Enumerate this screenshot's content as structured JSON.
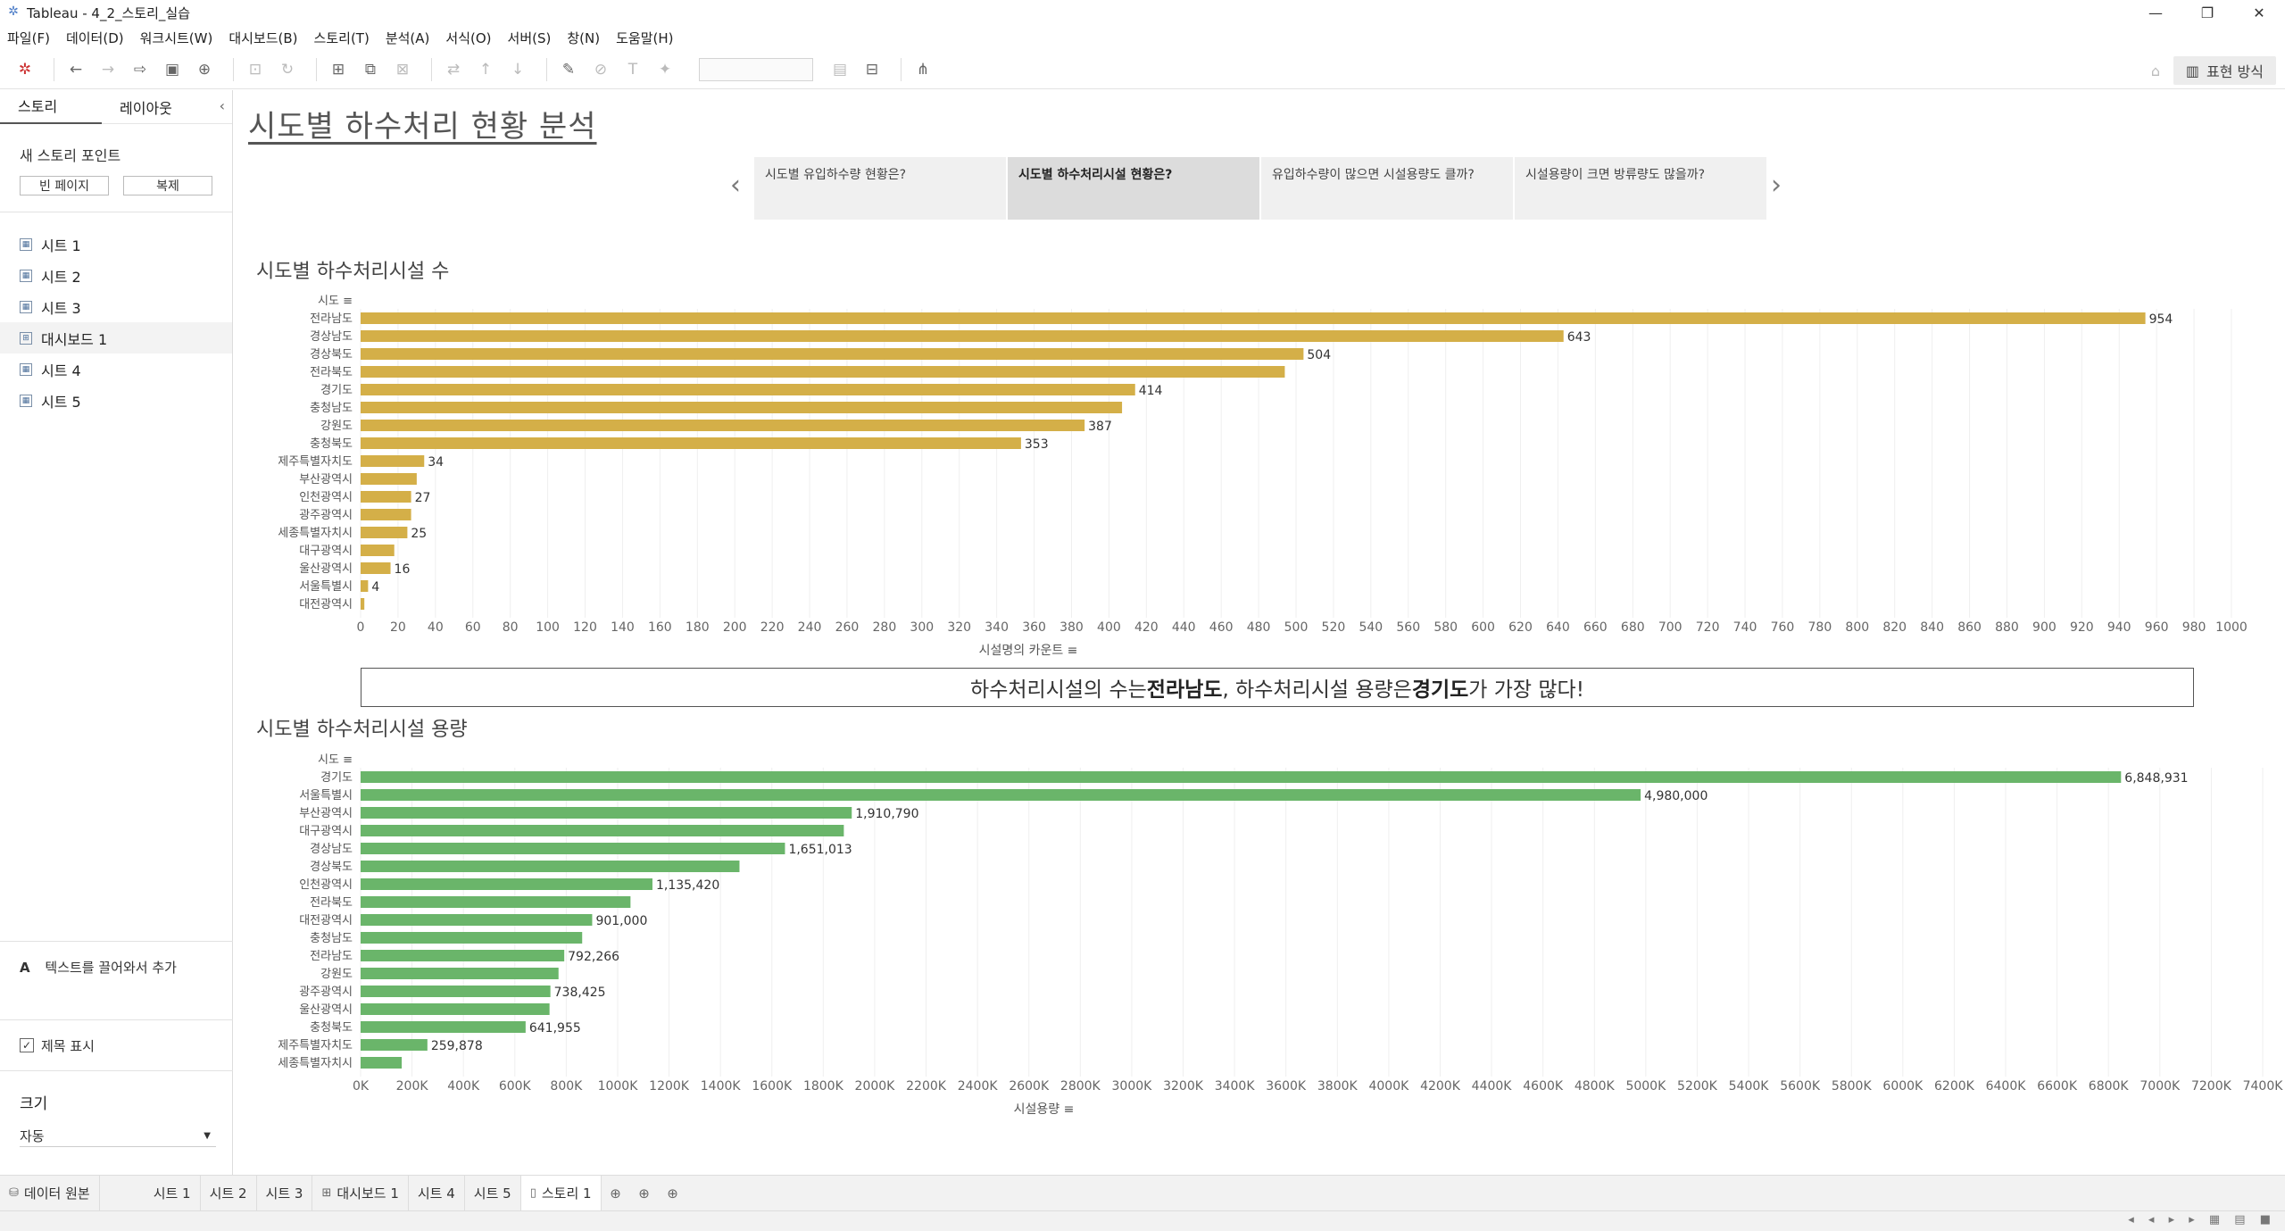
{
  "window": {
    "title": "Tableau - 4_2_스토리_실습"
  },
  "menu": [
    "파일(F)",
    "데이터(D)",
    "워크시트(W)",
    "대시보드(B)",
    "스토리(T)",
    "분석(A)",
    "서식(O)",
    "서버(S)",
    "창(N)",
    "도움말(H)"
  ],
  "toolbar": {
    "present_label": "표현 방식"
  },
  "left_pane": {
    "tabs": [
      "스토리",
      "레이아웃"
    ],
    "new_story_point": "새 스토리 포인트",
    "blank_btn": "빈 페이지",
    "dup_btn": "복제",
    "sheets": [
      "시트 1",
      "시트 2",
      "시트 3",
      "대시보드 1",
      "시트 4",
      "시트 5"
    ],
    "drag_text": "텍스트를 끌어와서 추가",
    "show_title": "제목 표시",
    "size_label": "크기",
    "size_value": "자동"
  },
  "story": {
    "title": "시도별 하수처리 현황 분석",
    "points": [
      "시도별 유입하수량 현황은?",
      "시도별 하수처리시설 현황은?",
      "유입하수량이 많으면 시설용량도 클까?",
      "시설용량이 크면 방류량도 많을까?"
    ],
    "active_point": 1,
    "annotation": {
      "pre": "하수처리시설의 수는 ",
      "b1": "전라남도",
      "mid": ", 하수처리시설 용량은 ",
      "b2": "경기도",
      "post": "가 가장 많다!"
    }
  },
  "chart_data": [
    {
      "type": "bar",
      "orientation": "horizontal",
      "title": "시도별 하수처리시설 수",
      "row_header": "시도",
      "xlabel": "시설명의 카운트",
      "xlim": [
        0,
        1000
      ],
      "xticks": [
        0,
        20,
        40,
        60,
        80,
        100,
        120,
        140,
        160,
        180,
        200,
        220,
        240,
        260,
        280,
        300,
        320,
        340,
        360,
        380,
        400,
        420,
        440,
        460,
        480,
        500,
        520,
        540,
        560,
        580,
        600,
        620,
        640,
        660,
        680,
        700,
        720,
        740,
        760,
        780,
        800,
        820,
        840,
        860,
        880,
        900,
        920,
        940,
        960,
        980,
        1000
      ],
      "color": "#d4af48",
      "categories": [
        "전라남도",
        "경상남도",
        "경상북도",
        "전라북도",
        "경기도",
        "충청남도",
        "강원도",
        "충청북도",
        "제주특별자치도",
        "부산광역시",
        "인천광역시",
        "광주광역시",
        "세종특별자치시",
        "대구광역시",
        "울산광역시",
        "서울특별시",
        "대전광역시"
      ],
      "values": [
        954,
        643,
        504,
        494,
        414,
        407,
        387,
        353,
        34,
        30,
        27,
        27,
        25,
        18,
        16,
        4,
        2
      ],
      "labels": [
        "954",
        "643",
        "504",
        "",
        "414",
        "",
        "387",
        "353",
        "34",
        "",
        "27",
        "",
        "25",
        "",
        "16",
        "4",
        ""
      ]
    },
    {
      "type": "bar",
      "orientation": "horizontal",
      "title": "시도별 하수처리시설 용량",
      "row_header": "시도",
      "xlabel": "시설용량",
      "xlim": [
        0,
        7400000
      ],
      "xticks": [
        "0K",
        "200K",
        "400K",
        "600K",
        "800K",
        "1000K",
        "1200K",
        "1400K",
        "1600K",
        "1800K",
        "2000K",
        "2200K",
        "2400K",
        "2600K",
        "2800K",
        "3000K",
        "3200K",
        "3400K",
        "3600K",
        "3800K",
        "4000K",
        "4200K",
        "4400K",
        "4600K",
        "4800K",
        "5000K",
        "5200K",
        "5400K",
        "5600K",
        "5800K",
        "6000K",
        "6200K",
        "6400K",
        "6600K",
        "6800K",
        "7000K",
        "7200K",
        "7400K"
      ],
      "color": "#6ab56a",
      "categories": [
        "경기도",
        "서울특별시",
        "부산광역시",
        "대구광역시",
        "경상남도",
        "경상북도",
        "인천광역시",
        "전라북도",
        "대전광역시",
        "충청남도",
        "전라남도",
        "강원도",
        "광주광역시",
        "울산광역시",
        "충청북도",
        "제주특별자치도",
        "세종특별자치시"
      ],
      "values": [
        6848931,
        4980000,
        1910790,
        1880000,
        1651013,
        1474000,
        1135420,
        1050000,
        901000,
        862000,
        792266,
        770000,
        738425,
        735000,
        641955,
        259878,
        160000
      ],
      "labels": [
        "6,848,931",
        "4,980,000",
        "1,910,790",
        "",
        "1,651,013",
        "",
        "1,135,420",
        "",
        "901,000",
        "",
        "792,266",
        "",
        "738,425",
        "",
        "641,955",
        "259,878",
        ""
      ]
    }
  ],
  "bottom_tabs": [
    "데이터 원본",
    "시트 1",
    "시트 2",
    "시트 3",
    "대시보드 1",
    "시트 4",
    "시트 5",
    "스토리 1"
  ],
  "active_bottom_tab": "스토리 1"
}
